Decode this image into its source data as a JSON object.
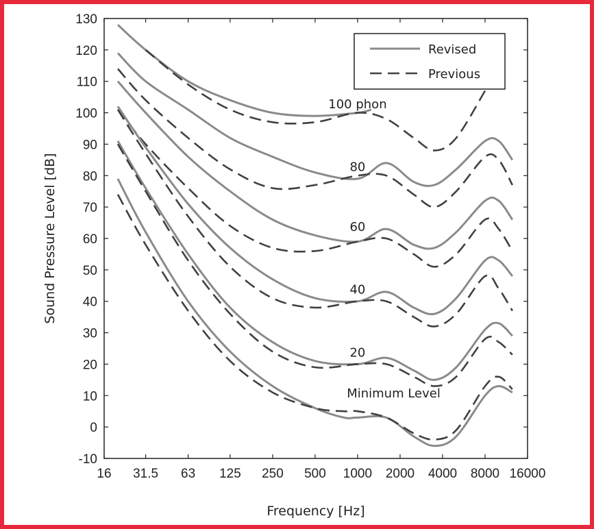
{
  "chart_data": {
    "type": "line",
    "xlabel": "Frequency [Hz]",
    "ylabel": "Sound Pressure Level [dB]",
    "x_scale": "log2",
    "xlim": [
      16,
      16000
    ],
    "ylim": [
      -10,
      130
    ],
    "xticks": [
      16,
      31.5,
      63,
      125,
      250,
      500,
      1000,
      2000,
      4000,
      8000,
      16000
    ],
    "xtick_labels": [
      "16",
      "31.5",
      "63",
      "125",
      "250",
      "500",
      "1000",
      "2000",
      "4000",
      "8000",
      "16000"
    ],
    "yticks": [
      -10,
      0,
      10,
      20,
      30,
      40,
      50,
      60,
      70,
      80,
      90,
      100,
      110,
      120,
      130
    ],
    "grid": false,
    "legend": {
      "placement": "top-right",
      "entries": [
        {
          "name": "Revised",
          "style": "solid"
        },
        {
          "name": "Previous",
          "style": "dashed"
        }
      ]
    },
    "colors": {
      "revised": "#8a8a8a",
      "previous": "#404040",
      "frame": "#e8283c"
    },
    "series": [
      {
        "name": "Revised",
        "curve": "100 phon",
        "x": [
          20,
          31.5,
          63,
          125,
          250,
          500,
          1000,
          1250
        ],
        "y": [
          128,
          120,
          110,
          104,
          100,
          99,
          100,
          101
        ]
      },
      {
        "name": "Previous",
        "curve": "100 phon",
        "x": [
          31.5,
          63,
          125,
          250,
          500,
          1000,
          1600,
          2500,
          3500,
          5000,
          8000
        ],
        "y": [
          120,
          109,
          101,
          97,
          97,
          100,
          98,
          92,
          88,
          92,
          107
        ]
      },
      {
        "name": "Revised",
        "curve": "80",
        "x": [
          20,
          31.5,
          63,
          125,
          250,
          500,
          1000,
          1600,
          2500,
          3500,
          5000,
          8000,
          10000,
          12500
        ],
        "y": [
          119,
          110,
          101,
          92,
          86,
          81,
          79,
          84,
          78,
          77,
          82,
          91,
          91,
          85
        ]
      },
      {
        "name": "Previous",
        "curve": "80",
        "x": [
          20,
          31.5,
          63,
          125,
          250,
          500,
          1000,
          1600,
          2500,
          3500,
          5000,
          8000,
          10000,
          12500
        ],
        "y": [
          114,
          104,
          92,
          82,
          76,
          77,
          80,
          80,
          74,
          70,
          75,
          86,
          85,
          77
        ]
      },
      {
        "name": "Revised",
        "curve": "60",
        "x": [
          20,
          31.5,
          63,
          125,
          250,
          500,
          1000,
          1600,
          2500,
          3500,
          5000,
          8000,
          10000,
          12500
        ],
        "y": [
          110,
          100,
          86,
          75,
          66,
          61,
          59,
          63,
          58,
          57,
          62,
          72,
          72,
          66
        ]
      },
      {
        "name": "Previous",
        "curve": "60",
        "x": [
          20,
          31.5,
          63,
          125,
          250,
          500,
          1000,
          1600,
          2500,
          3500,
          5000,
          8000,
          10000,
          12500
        ],
        "y": [
          101,
          90,
          76,
          64,
          57,
          56,
          59,
          60,
          55,
          51,
          55,
          66,
          63,
          56
        ]
      },
      {
        "name": "Revised",
        "curve": "40",
        "x": [
          20,
          31.5,
          63,
          125,
          250,
          500,
          1000,
          1600,
          2500,
          3500,
          5000,
          8000,
          10000,
          12500
        ],
        "y": [
          102,
          89,
          71,
          57,
          47,
          41,
          40,
          43,
          38,
          36,
          41,
          53,
          53,
          48
        ]
      },
      {
        "name": "Previous",
        "curve": "40",
        "x": [
          20,
          31.5,
          63,
          125,
          250,
          500,
          1000,
          1600,
          2500,
          3500,
          5000,
          8000,
          10000,
          12500
        ],
        "y": [
          101,
          87,
          67,
          51,
          41,
          38,
          40,
          40,
          35,
          32,
          36,
          48,
          44,
          37
        ]
      },
      {
        "name": "Revised",
        "curve": "20",
        "x": [
          20,
          31.5,
          63,
          125,
          250,
          500,
          1000,
          1600,
          2500,
          3500,
          5000,
          8000,
          10000,
          12500
        ],
        "y": [
          91,
          76,
          55,
          38,
          27,
          21,
          20,
          22,
          18,
          15,
          19,
          31,
          33,
          29
        ]
      },
      {
        "name": "Previous",
        "curve": "20",
        "x": [
          20,
          31.5,
          63,
          125,
          250,
          500,
          1000,
          1600,
          2500,
          3500,
          5000,
          8000,
          10000,
          12500
        ],
        "y": [
          90,
          75,
          53,
          36,
          24,
          19,
          20,
          20,
          16,
          13,
          16,
          28,
          27,
          23
        ]
      },
      {
        "name": "Revised",
        "curve": "Minimum Level",
        "x": [
          20,
          31.5,
          63,
          125,
          250,
          500,
          800,
          1000,
          1600,
          2500,
          3500,
          5000,
          8000,
          10000,
          12500
        ],
        "y": [
          79,
          62,
          40,
          24,
          13,
          6,
          3,
          3,
          3,
          -3,
          -6,
          -3,
          10,
          13,
          11
        ]
      },
      {
        "name": "Previous",
        "curve": "Minimum Level",
        "x": [
          20,
          31.5,
          63,
          125,
          250,
          500,
          800,
          1000,
          1600,
          2500,
          3500,
          5000,
          8000,
          10000,
          12500
        ],
        "y": [
          74,
          58,
          37,
          21,
          11,
          6,
          5,
          5,
          3,
          -2,
          -4,
          -1,
          13,
          16,
          12
        ]
      }
    ],
    "annotations": [
      {
        "text": "100 phon",
        "x": 1000,
        "y": 101
      },
      {
        "text": "80",
        "x": 1000,
        "y": 81
      },
      {
        "text": "60",
        "x": 1000,
        "y": 62
      },
      {
        "text": "40",
        "x": 1000,
        "y": 42
      },
      {
        "text": "20",
        "x": 1000,
        "y": 22
      },
      {
        "text": "Minimum Level",
        "x": 1800,
        "y": 9
      }
    ]
  }
}
